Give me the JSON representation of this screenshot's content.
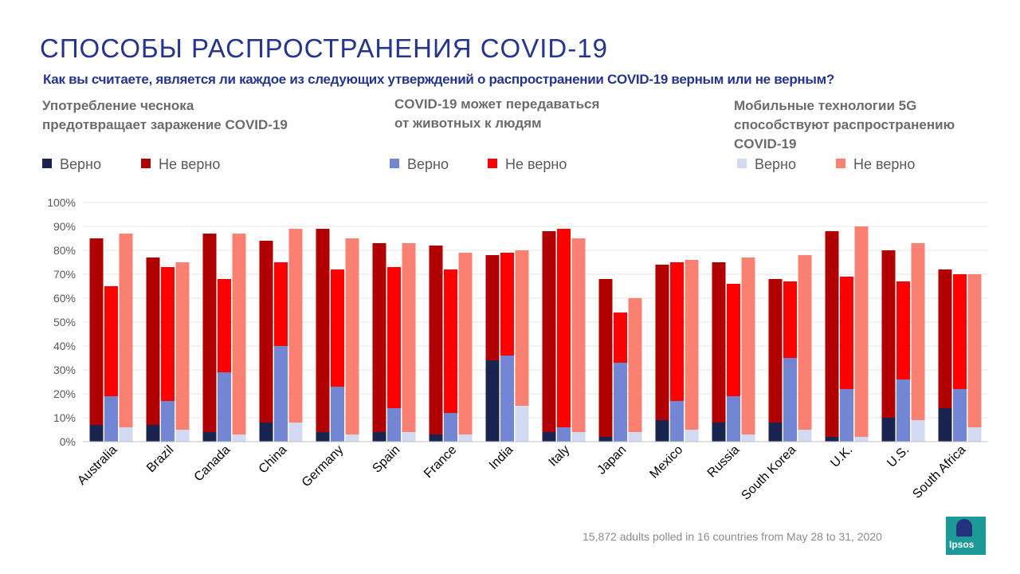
{
  "page": {
    "title": "СПОСОБЫ РАСПРОСТРАНЕНИЯ COVID-19",
    "question": "Как вы считаете, является ли каждое из следующих утверждений о распространении COVID-19 верным или не верным?",
    "statements": [
      "Употребление чеснока\nпредотвращает заражение COVID-19",
      "COVID-19 может передаваться\nот животных к людям",
      "Мобильные технологии 5G\nспособствуют распространению\nCOVID-19"
    ],
    "legend": [
      {
        "label": "Верно",
        "color": "#1a2451"
      },
      {
        "label": "Не верно",
        "color": "#b00000"
      },
      {
        "label": "Верно",
        "color": "#7286d3"
      },
      {
        "label": "Не верно",
        "color": "#ff0000"
      },
      {
        "label": "Верно",
        "color": "#d2daf2"
      },
      {
        "label": "Не верно",
        "color": "#fa8072"
      }
    ],
    "footer": "15,872 adults polled in 16 countries from May 28 to 31, 2020",
    "logo_text": "Ipsos"
  },
  "chart_data": {
    "type": "bar",
    "stacked": true,
    "ylim": [
      0,
      100
    ],
    "y_ticks": [
      "0%",
      "10%",
      "20%",
      "30%",
      "40%",
      "50%",
      "60%",
      "70%",
      "80%",
      "90%",
      "100%"
    ],
    "grid": true,
    "categories": [
      "Australia",
      "Brazil",
      "Canada",
      "China",
      "Germany",
      "Spain",
      "France",
      "India",
      "Italy",
      "Japan",
      "Mexico",
      "Russia",
      "South Korea",
      "U.K.",
      "U.S.",
      "South Africa"
    ],
    "groups": [
      {
        "statement": "Употребление чеснока предотвращает заражение COVID-19",
        "series": [
          {
            "name": "Верно",
            "color": "#1a2451",
            "values": [
              7,
              7,
              4,
              8,
              4,
              4,
              3,
              34,
              4,
              2,
              9,
              8,
              8,
              2,
              10,
              14
            ]
          },
          {
            "name": "Не верно",
            "color": "#b00000",
            "values": [
              78,
              70,
              83,
              76,
              85,
              79,
              79,
              44,
              84,
              66,
              65,
              67,
              60,
              86,
              70,
              58
            ]
          }
        ]
      },
      {
        "statement": "COVID-19 может передаваться от животных к людям",
        "series": [
          {
            "name": "Верно",
            "color": "#7286d3",
            "values": [
              19,
              17,
              29,
              40,
              23,
              14,
              12,
              36,
              6,
              33,
              17,
              19,
              35,
              22,
              26,
              22
            ]
          },
          {
            "name": "Не верно",
            "color": "#ff0000",
            "values": [
              46,
              56,
              39,
              35,
              49,
              59,
              60,
              43,
              83,
              21,
              58,
              47,
              32,
              47,
              41,
              48
            ]
          }
        ]
      },
      {
        "statement": "Мобильные технологии 5G способствуют распространению COVID-19",
        "series": [
          {
            "name": "Верно",
            "color": "#d2daf2",
            "values": [
              6,
              5,
              3,
              8,
              3,
              4,
              3,
              15,
              4,
              4,
              5,
              3,
              5,
              2,
              9,
              6
            ]
          },
          {
            "name": "Не верно",
            "color": "#fa8072",
            "values": [
              81,
              70,
              84,
              81,
              82,
              79,
              76,
              65,
              81,
              56,
              71,
              74,
              73,
              88,
              74,
              64
            ]
          }
        ]
      }
    ]
  }
}
